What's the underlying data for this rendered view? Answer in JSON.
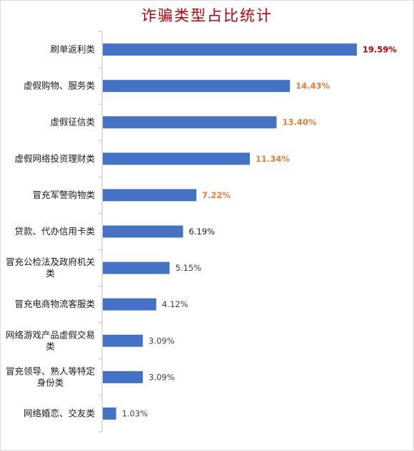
{
  "chart_data": {
    "type": "bar",
    "orientation": "horizontal",
    "title": "诈骗类型占比统计",
    "categories": [
      "刷单返利类",
      "虚假购物、服务类",
      "虚假征信类",
      "虚假网络投资理财类",
      "冒充军警购物类",
      "贷款、代办信用卡类",
      "冒充公检法及政府机关类",
      "冒充电商物流客服类",
      "网络游戏产品虚假交易类",
      "冒充领导、熟人等特定身份类",
      "网络婚恋、交友类"
    ],
    "values": [
      19.59,
      14.43,
      13.4,
      11.34,
      7.22,
      6.19,
      5.15,
      4.12,
      3.09,
      3.09,
      1.03
    ],
    "value_labels": [
      "19.59%",
      "14.43%",
      "13.40%",
      "11.34%",
      "7.22%",
      "6.19%",
      "5.15%",
      "4.12%",
      "3.09%",
      "3.09%",
      "1.03%"
    ],
    "bar_color": "#4472c4",
    "label_colors": [
      "#c00000",
      "#ed7d31",
      "#ed7d31",
      "#ed7d31",
      "#ed7d31",
      "#1a1a1a",
      "#404040",
      "#404040",
      "#404040",
      "#404040",
      "#404040"
    ],
    "label_bold": [
      true,
      true,
      true,
      true,
      true,
      false,
      false,
      false,
      false,
      false,
      false
    ],
    "xlim": [
      0,
      21.3
    ],
    "grid": false,
    "legend": "none"
  }
}
